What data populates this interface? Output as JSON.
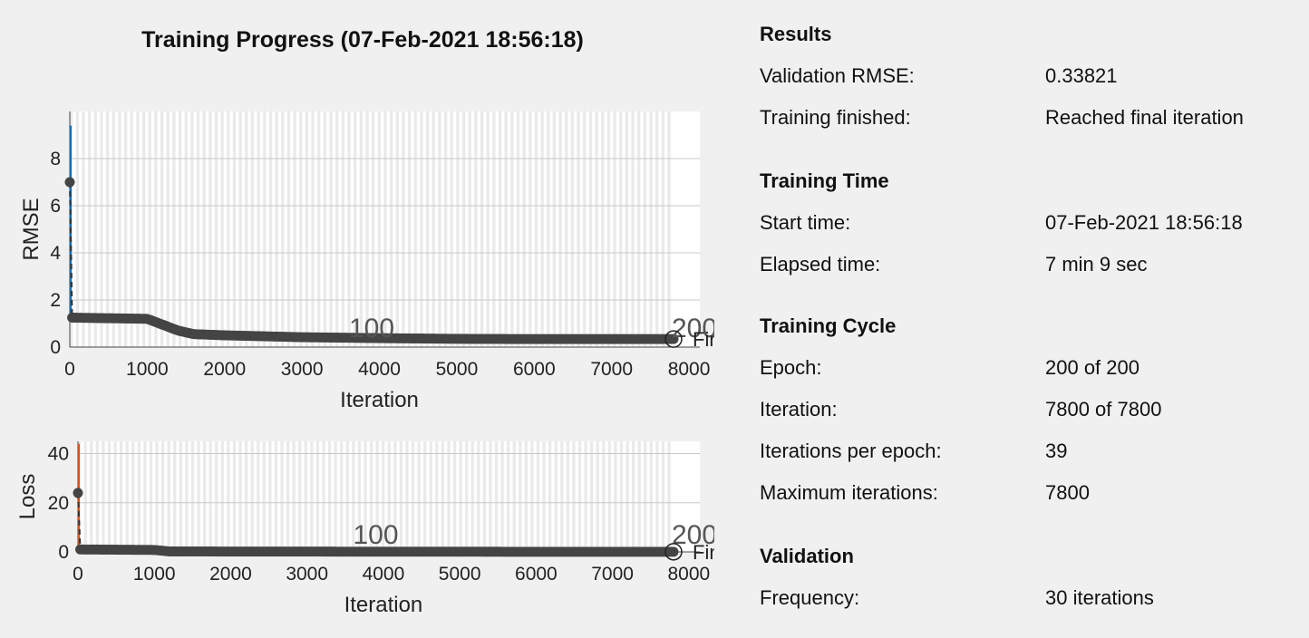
{
  "title": "Training Progress (07-Feb-2021 18:56:18)",
  "colors": {
    "background": "#f0f0f0",
    "rmse_line": "#0072bd",
    "loss_line": "#d95319",
    "validation_marker": "#444444",
    "epoch_band": "#d8d8d8"
  },
  "chart_data": [
    {
      "type": "line",
      "ylabel": "RMSE",
      "xlabel": "Iteration",
      "xlim": [
        0,
        8000
      ],
      "ylim": [
        0,
        10
      ],
      "xticks": [
        "0",
        "1000",
        "2000",
        "3000",
        "4000",
        "5000",
        "6000",
        "7000",
        "8000"
      ],
      "yticks": [
        "0",
        "2",
        "4",
        "6",
        "8"
      ],
      "epoch_labels": [
        {
          "iteration": 3900,
          "label": "100"
        },
        {
          "iteration": 7800,
          "label": "200"
        }
      ],
      "final_marker_label": "Final",
      "validation": {
        "x": [
          0,
          30,
          1000,
          1200,
          1400,
          1600,
          2000,
          3000,
          4000,
          5000,
          6000,
          7000,
          7800
        ],
        "y": [
          7.0,
          1.25,
          1.2,
          0.95,
          0.7,
          0.55,
          0.5,
          0.42,
          0.38,
          0.35,
          0.34,
          0.34,
          0.34
        ]
      },
      "final_value": 0.33821
    },
    {
      "type": "line",
      "ylabel": "Loss",
      "xlabel": "Iteration",
      "xlim": [
        0,
        8000
      ],
      "ylim": [
        0,
        45
      ],
      "xticks": [
        "0",
        "1000",
        "2000",
        "3000",
        "4000",
        "5000",
        "6000",
        "7000",
        "8000"
      ],
      "yticks": [
        "0",
        "20",
        "40"
      ],
      "epoch_labels": [
        {
          "iteration": 3900,
          "label": "100"
        },
        {
          "iteration": 7800,
          "label": "200"
        }
      ],
      "final_marker_label": "Final",
      "validation": {
        "x": [
          0,
          30,
          1000,
          1200,
          2000,
          4000,
          6000,
          7800
        ],
        "y": [
          24,
          1.0,
          0.8,
          0.2,
          0.15,
          0.1,
          0.06,
          0.06
        ]
      }
    }
  ],
  "results": {
    "heading": "Results",
    "rows": [
      {
        "label": "Validation RMSE:",
        "value": "0.33821"
      },
      {
        "label": "Training finished:",
        "value": "Reached final iteration"
      }
    ]
  },
  "training_time": {
    "heading": "Training Time",
    "rows": [
      {
        "label": "Start time:",
        "value": "07-Feb-2021 18:56:18"
      },
      {
        "label": "Elapsed time:",
        "value": "7 min 9 sec"
      }
    ]
  },
  "training_cycle": {
    "heading": "Training Cycle",
    "rows": [
      {
        "label": "Epoch:",
        "value": "200 of 200"
      },
      {
        "label": "Iteration:",
        "value": "7800 of 7800"
      },
      {
        "label": "Iterations per epoch:",
        "value": "39"
      },
      {
        "label": "Maximum iterations:",
        "value": "7800"
      }
    ]
  },
  "validation_info": {
    "heading": "Validation",
    "rows": [
      {
        "label": "Frequency:",
        "value": "30 iterations"
      }
    ]
  }
}
